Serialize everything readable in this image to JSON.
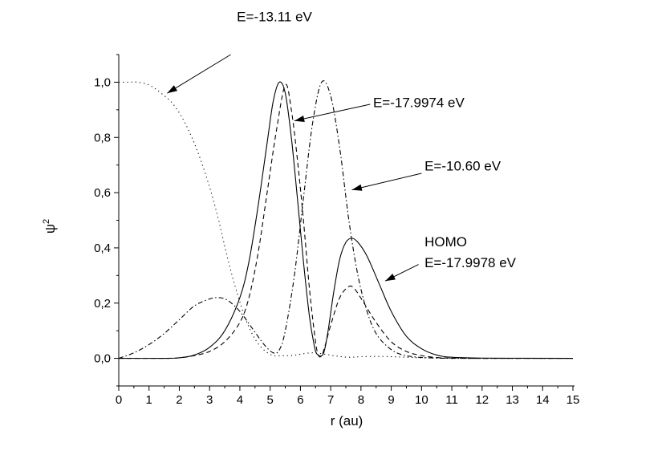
{
  "chart_data": {
    "type": "line",
    "xlabel": "r (au)",
    "ylabel": "ψ",
    "ylabel_superscript": "2",
    "xlim": [
      0,
      15
    ],
    "ylim": [
      -0.1,
      1.1
    ],
    "x_ticks": [
      "0",
      "1",
      "2",
      "3",
      "4",
      "5",
      "6",
      "7",
      "8",
      "9",
      "10",
      "11",
      "12",
      "13",
      "14",
      "15"
    ],
    "y_ticks": [
      "0,0",
      "0,2",
      "0,4",
      "0,6",
      "0,8",
      "1,0"
    ],
    "grid": false,
    "series": [
      {
        "name": "E=-13.11 eV",
        "style": "dotted",
        "points": [
          [
            0,
            1.0
          ],
          [
            0.3,
            1.0
          ],
          [
            0.6,
            1.0
          ],
          [
            1.0,
            0.99
          ],
          [
            1.4,
            0.96
          ],
          [
            1.8,
            0.92
          ],
          [
            2.2,
            0.85
          ],
          [
            2.6,
            0.75
          ],
          [
            3.0,
            0.62
          ],
          [
            3.3,
            0.5
          ],
          [
            3.6,
            0.36
          ],
          [
            3.9,
            0.24
          ],
          [
            4.2,
            0.14
          ],
          [
            4.5,
            0.07
          ],
          [
            4.8,
            0.03
          ],
          [
            5.1,
            0.01
          ],
          [
            5.4,
            0.01
          ],
          [
            5.7,
            0.01
          ],
          [
            6.0,
            0.015
          ],
          [
            6.4,
            0.02
          ],
          [
            6.8,
            0.015
          ],
          [
            7.2,
            0.008
          ],
          [
            7.6,
            0.004
          ],
          [
            8.0,
            0.006
          ],
          [
            8.5,
            0.007
          ],
          [
            9.0,
            0.006
          ],
          [
            9.5,
            0.004
          ],
          [
            10.0,
            0.002
          ],
          [
            11,
            0.001
          ],
          [
            12,
            0
          ],
          [
            15,
            0
          ]
        ]
      },
      {
        "name": "E=-17.9974 eV",
        "style": "dashed",
        "points": [
          [
            0,
            0
          ],
          [
            1.5,
            0
          ],
          [
            2.0,
            0.002
          ],
          [
            2.5,
            0.01
          ],
          [
            3.0,
            0.025
          ],
          [
            3.5,
            0.06
          ],
          [
            4.0,
            0.13
          ],
          [
            4.3,
            0.22
          ],
          [
            4.6,
            0.38
          ],
          [
            4.9,
            0.6
          ],
          [
            5.2,
            0.82
          ],
          [
            5.5,
            0.99
          ],
          [
            5.7,
            0.9
          ],
          [
            5.9,
            0.72
          ],
          [
            6.1,
            0.5
          ],
          [
            6.3,
            0.25
          ],
          [
            6.5,
            0.06
          ],
          [
            6.6,
            0.01
          ],
          [
            6.7,
            0.01
          ],
          [
            6.8,
            0.04
          ],
          [
            7.0,
            0.12
          ],
          [
            7.3,
            0.22
          ],
          [
            7.6,
            0.26
          ],
          [
            7.8,
            0.25
          ],
          [
            8.1,
            0.2
          ],
          [
            8.5,
            0.13
          ],
          [
            9.0,
            0.06
          ],
          [
            9.5,
            0.025
          ],
          [
            10.0,
            0.01
          ],
          [
            10.5,
            0.003
          ],
          [
            11,
            0.001
          ],
          [
            12,
            0
          ],
          [
            15,
            0
          ]
        ]
      },
      {
        "name": "E=-10.60 eV",
        "style": "dashdot",
        "points": [
          [
            0,
            0
          ],
          [
            0.5,
            0.02
          ],
          [
            1.0,
            0.05
          ],
          [
            1.5,
            0.09
          ],
          [
            2.0,
            0.14
          ],
          [
            2.5,
            0.19
          ],
          [
            3.0,
            0.215
          ],
          [
            3.3,
            0.22
          ],
          [
            3.6,
            0.21
          ],
          [
            4.0,
            0.17
          ],
          [
            4.4,
            0.11
          ],
          [
            4.8,
            0.05
          ],
          [
            5.1,
            0.02
          ],
          [
            5.3,
            0.03
          ],
          [
            5.5,
            0.1
          ],
          [
            5.8,
            0.3
          ],
          [
            6.1,
            0.58
          ],
          [
            6.4,
            0.85
          ],
          [
            6.7,
            1.0
          ],
          [
            7.0,
            0.95
          ],
          [
            7.3,
            0.76
          ],
          [
            7.6,
            0.5
          ],
          [
            7.9,
            0.3
          ],
          [
            8.2,
            0.17
          ],
          [
            8.5,
            0.09
          ],
          [
            8.9,
            0.04
          ],
          [
            9.3,
            0.015
          ],
          [
            9.8,
            0.005
          ],
          [
            10.5,
            0.001
          ],
          [
            11.5,
            0
          ],
          [
            15,
            0
          ]
        ]
      },
      {
        "name": "HOMO",
        "style": "solid",
        "points": [
          [
            0,
            0
          ],
          [
            1.5,
            0
          ],
          [
            2.0,
            0.002
          ],
          [
            2.5,
            0.012
          ],
          [
            3.0,
            0.04
          ],
          [
            3.5,
            0.1
          ],
          [
            4.0,
            0.22
          ],
          [
            4.3,
            0.35
          ],
          [
            4.6,
            0.55
          ],
          [
            4.9,
            0.78
          ],
          [
            5.1,
            0.93
          ],
          [
            5.3,
            1.0
          ],
          [
            5.5,
            0.96
          ],
          [
            5.7,
            0.8
          ],
          [
            5.9,
            0.58
          ],
          [
            6.1,
            0.35
          ],
          [
            6.3,
            0.15
          ],
          [
            6.45,
            0.05
          ],
          [
            6.55,
            0.015
          ],
          [
            6.75,
            0.015
          ],
          [
            6.9,
            0.09
          ],
          [
            7.1,
            0.24
          ],
          [
            7.3,
            0.36
          ],
          [
            7.5,
            0.42
          ],
          [
            7.7,
            0.435
          ],
          [
            7.9,
            0.42
          ],
          [
            8.2,
            0.37
          ],
          [
            8.6,
            0.27
          ],
          [
            9.0,
            0.17
          ],
          [
            9.5,
            0.08
          ],
          [
            10.0,
            0.035
          ],
          [
            10.5,
            0.012
          ],
          [
            11.0,
            0.004
          ],
          [
            12,
            0.001
          ],
          [
            15,
            0
          ]
        ]
      }
    ],
    "annotations": [
      {
        "lines": [
          "E=-13.11 eV"
        ]
      },
      {
        "lines": [
          "E=-17.9974 eV"
        ]
      },
      {
        "lines": [
          "E=-10.60 eV"
        ]
      },
      {
        "lines": [
          "HOMO",
          "E=-17.9978 eV"
        ]
      }
    ]
  }
}
